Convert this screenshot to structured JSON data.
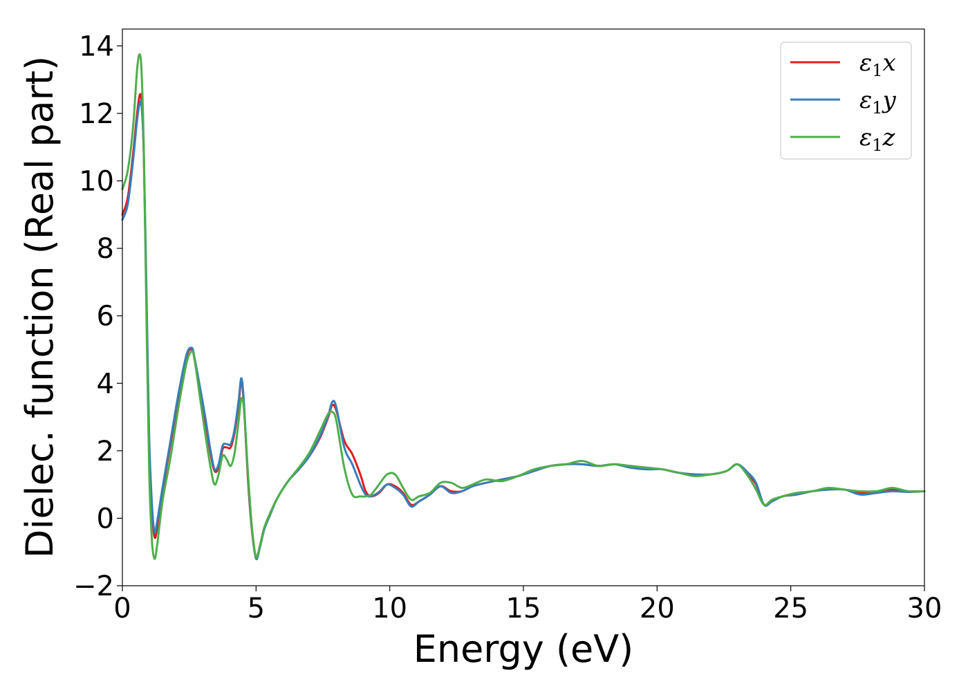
{
  "chart_data": {
    "type": "line",
    "title": "",
    "xlabel": "Energy (eV)",
    "ylabel": "Dielec. function (Real part)",
    "xlim": [
      0,
      30
    ],
    "ylim": [
      -2,
      14.5
    ],
    "xticks": [
      0,
      5,
      10,
      15,
      20,
      25,
      30
    ],
    "yticks": [
      -2,
      0,
      2,
      4,
      6,
      8,
      10,
      12,
      14
    ],
    "grid": false,
    "legend_position": "top-right",
    "series": [
      {
        "name": "ε₁x",
        "legend_base": "ε",
        "legend_sub": "1",
        "legend_suffix": "x",
        "color": "#e41a1c",
        "x": [
          0,
          0.2,
          0.4,
          0.55,
          0.65,
          0.72,
          0.8,
          0.9,
          1.0,
          1.1,
          1.2,
          1.3,
          1.5,
          1.8,
          2.1,
          2.4,
          2.6,
          2.7,
          2.9,
          3.1,
          3.3,
          3.45,
          3.6,
          3.75,
          3.9,
          4.05,
          4.2,
          4.35,
          4.45,
          4.55,
          4.7,
          4.85,
          5.0,
          5.15,
          5.3,
          5.5,
          5.8,
          6.2,
          6.6,
          7.0,
          7.4,
          7.7,
          7.85,
          8.0,
          8.3,
          8.6,
          8.9,
          9.1,
          9.3,
          9.6,
          9.9,
          10.2,
          10.5,
          10.8,
          11.1,
          11.5,
          11.9,
          12.3,
          12.7,
          13.1,
          13.6,
          14.2,
          14.8,
          15.4,
          16.0,
          16.6,
          17.2,
          17.8,
          18.4,
          19.0,
          19.6,
          20.2,
          20.8,
          21.4,
          22.0,
          22.6,
          23.0,
          23.4,
          23.7,
          24.0,
          24.3,
          24.7,
          25.2,
          25.8,
          26.4,
          27.0,
          27.6,
          28.2,
          28.8,
          29.4,
          30.0
        ],
        "values": [
          9.0,
          9.5,
          10.8,
          12.0,
          12.55,
          12.3,
          10.8,
          6.5,
          2.2,
          0.3,
          -0.55,
          -0.3,
          0.8,
          2.2,
          3.6,
          4.8,
          5.0,
          4.7,
          3.8,
          2.9,
          1.9,
          1.4,
          1.5,
          2.05,
          2.1,
          2.1,
          2.55,
          3.4,
          4.05,
          3.3,
          1.1,
          -0.4,
          -1.15,
          -0.8,
          -0.3,
          0.1,
          0.6,
          1.1,
          1.45,
          1.85,
          2.4,
          3.0,
          3.35,
          3.2,
          2.3,
          1.9,
          1.3,
          0.8,
          0.65,
          0.75,
          1.0,
          0.95,
          0.75,
          0.4,
          0.5,
          0.7,
          0.95,
          0.8,
          0.8,
          0.95,
          1.05,
          1.15,
          1.25,
          1.4,
          1.55,
          1.6,
          1.6,
          1.55,
          1.6,
          1.55,
          1.5,
          1.45,
          1.35,
          1.3,
          1.3,
          1.4,
          1.6,
          1.3,
          1.0,
          0.4,
          0.5,
          0.65,
          0.7,
          0.8,
          0.85,
          0.85,
          0.75,
          0.75,
          0.85,
          0.8,
          0.8
        ]
      },
      {
        "name": "ε₁y",
        "legend_base": "ε",
        "legend_sub": "1",
        "legend_suffix": "y",
        "color": "#377eb8",
        "x": [
          0,
          0.2,
          0.4,
          0.55,
          0.65,
          0.72,
          0.8,
          0.9,
          1.0,
          1.1,
          1.2,
          1.3,
          1.5,
          1.8,
          2.1,
          2.4,
          2.6,
          2.7,
          2.9,
          3.1,
          3.3,
          3.45,
          3.6,
          3.75,
          3.9,
          4.05,
          4.2,
          4.35,
          4.45,
          4.55,
          4.7,
          4.85,
          5.0,
          5.15,
          5.3,
          5.5,
          5.8,
          6.2,
          6.6,
          7.0,
          7.4,
          7.7,
          7.85,
          8.0,
          8.3,
          8.6,
          8.9,
          9.1,
          9.3,
          9.6,
          9.9,
          10.2,
          10.5,
          10.8,
          11.1,
          11.5,
          11.9,
          12.3,
          12.7,
          13.1,
          13.6,
          14.2,
          14.8,
          15.4,
          16.0,
          16.6,
          17.2,
          17.8,
          18.4,
          19.0,
          19.6,
          20.2,
          20.8,
          21.4,
          22.0,
          22.6,
          23.0,
          23.4,
          23.7,
          24.0,
          24.3,
          24.7,
          25.2,
          25.8,
          26.4,
          27.0,
          27.6,
          28.2,
          28.8,
          29.4,
          30.0
        ],
        "values": [
          8.85,
          9.3,
          10.6,
          11.8,
          12.3,
          12.2,
          10.9,
          6.8,
          2.5,
          0.5,
          -0.4,
          -0.1,
          0.9,
          2.3,
          3.7,
          4.85,
          5.05,
          4.75,
          3.9,
          3.0,
          2.0,
          1.45,
          1.6,
          2.15,
          2.2,
          2.2,
          2.65,
          3.5,
          4.15,
          3.4,
          1.2,
          -0.35,
          -1.2,
          -0.85,
          -0.35,
          0.05,
          0.6,
          1.1,
          1.45,
          1.85,
          2.45,
          3.05,
          3.45,
          3.3,
          2.1,
          1.6,
          1.0,
          0.7,
          0.65,
          0.78,
          1.0,
          0.9,
          0.7,
          0.35,
          0.5,
          0.7,
          0.95,
          0.75,
          0.8,
          0.95,
          1.05,
          1.15,
          1.25,
          1.4,
          1.55,
          1.6,
          1.6,
          1.55,
          1.6,
          1.5,
          1.45,
          1.45,
          1.35,
          1.3,
          1.3,
          1.4,
          1.6,
          1.35,
          1.05,
          0.4,
          0.5,
          0.65,
          0.7,
          0.8,
          0.85,
          0.85,
          0.7,
          0.75,
          0.8,
          0.78,
          0.8
        ]
      },
      {
        "name": "ε₁z",
        "legend_base": "ε",
        "legend_sub": "1",
        "legend_suffix": "z",
        "color": "#4daf4a",
        "x": [
          0,
          0.2,
          0.4,
          0.55,
          0.65,
          0.72,
          0.8,
          0.9,
          1.0,
          1.1,
          1.2,
          1.3,
          1.5,
          1.8,
          2.1,
          2.4,
          2.6,
          2.7,
          2.9,
          3.1,
          3.3,
          3.45,
          3.6,
          3.75,
          3.9,
          4.05,
          4.2,
          4.35,
          4.45,
          4.55,
          4.7,
          4.85,
          5.0,
          5.15,
          5.3,
          5.5,
          5.8,
          6.2,
          6.6,
          7.0,
          7.4,
          7.7,
          7.85,
          8.0,
          8.3,
          8.6,
          8.9,
          9.1,
          9.3,
          9.6,
          9.9,
          10.2,
          10.5,
          10.8,
          11.1,
          11.5,
          11.9,
          12.3,
          12.7,
          13.1,
          13.6,
          14.2,
          14.8,
          15.4,
          16.0,
          16.6,
          17.2,
          17.8,
          18.4,
          19.0,
          19.6,
          20.2,
          20.8,
          21.4,
          22.0,
          22.6,
          23.0,
          23.4,
          23.7,
          24.0,
          24.3,
          24.7,
          25.2,
          25.8,
          26.4,
          27.0,
          27.6,
          28.2,
          28.8,
          29.4,
          30.0
        ],
        "values": [
          9.75,
          10.3,
          11.6,
          13.3,
          13.75,
          13.2,
          11.0,
          6.0,
          1.5,
          -0.6,
          -1.2,
          -0.8,
          0.5,
          1.8,
          3.3,
          4.6,
          4.95,
          4.7,
          3.6,
          2.5,
          1.5,
          1.0,
          1.3,
          1.85,
          1.75,
          1.55,
          1.95,
          2.9,
          3.55,
          3.2,
          1.3,
          -0.3,
          -1.15,
          -0.8,
          -0.3,
          0.1,
          0.6,
          1.1,
          1.5,
          1.95,
          2.6,
          3.1,
          3.15,
          2.9,
          1.5,
          0.7,
          0.65,
          0.65,
          0.7,
          1.0,
          1.3,
          1.3,
          0.9,
          0.55,
          0.65,
          0.75,
          1.05,
          1.05,
          0.9,
          1.0,
          1.15,
          1.1,
          1.25,
          1.45,
          1.55,
          1.6,
          1.7,
          1.55,
          1.6,
          1.55,
          1.5,
          1.45,
          1.35,
          1.25,
          1.3,
          1.4,
          1.6,
          1.25,
          0.85,
          0.4,
          0.55,
          0.65,
          0.75,
          0.8,
          0.9,
          0.85,
          0.8,
          0.8,
          0.9,
          0.8,
          0.8
        ]
      }
    ]
  }
}
